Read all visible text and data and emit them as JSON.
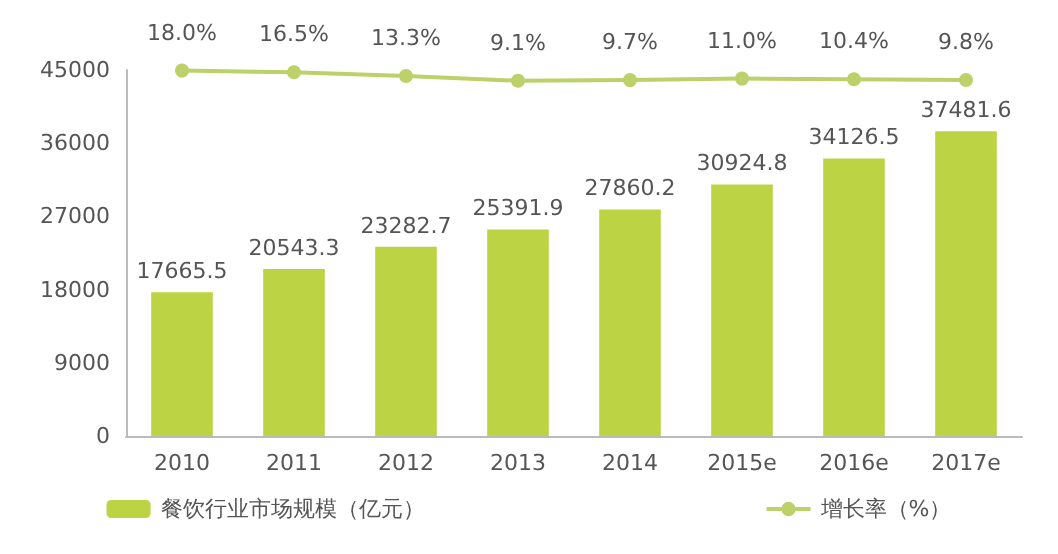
{
  "chart_data": {
    "type": "bar",
    "categories": [
      "2010",
      "2011",
      "2012",
      "2013",
      "2014",
      "2015e",
      "2016e",
      "2017e"
    ],
    "series": [
      {
        "name": "餐饮行业市场规模（亿元）",
        "color": "#bcd444",
        "values": [
          17665.5,
          20543.3,
          23282.7,
          25391.9,
          27860.2,
          30924.8,
          34126.5,
          37481.6
        ],
        "value_labels": [
          "17665.5",
          "20543.3",
          "23282.7",
          "25391.9",
          "27860.2",
          "30924.8",
          "34126.5",
          "37481.6"
        ]
      },
      {
        "name": "增长率（%）",
        "type": "line",
        "axis": "y2",
        "color": "#bcd16a",
        "values": [
          18.0,
          16.5,
          13.3,
          9.1,
          9.7,
          11.0,
          10.4,
          9.8
        ],
        "value_labels": [
          "18.0%",
          "16.5%",
          "13.3%",
          "9.1%",
          "9.7%",
          "11.0%",
          "10.4%",
          "9.8%"
        ]
      }
    ],
    "ylim": [
      0,
      45000
    ],
    "yticks": [
      0,
      9000,
      18000,
      27000,
      36000,
      45000
    ],
    "y2lim": [
      -300,
      18.5
    ],
    "grid": false,
    "legend": "bottom",
    "marker": "circle",
    "line_style": "solid"
  }
}
